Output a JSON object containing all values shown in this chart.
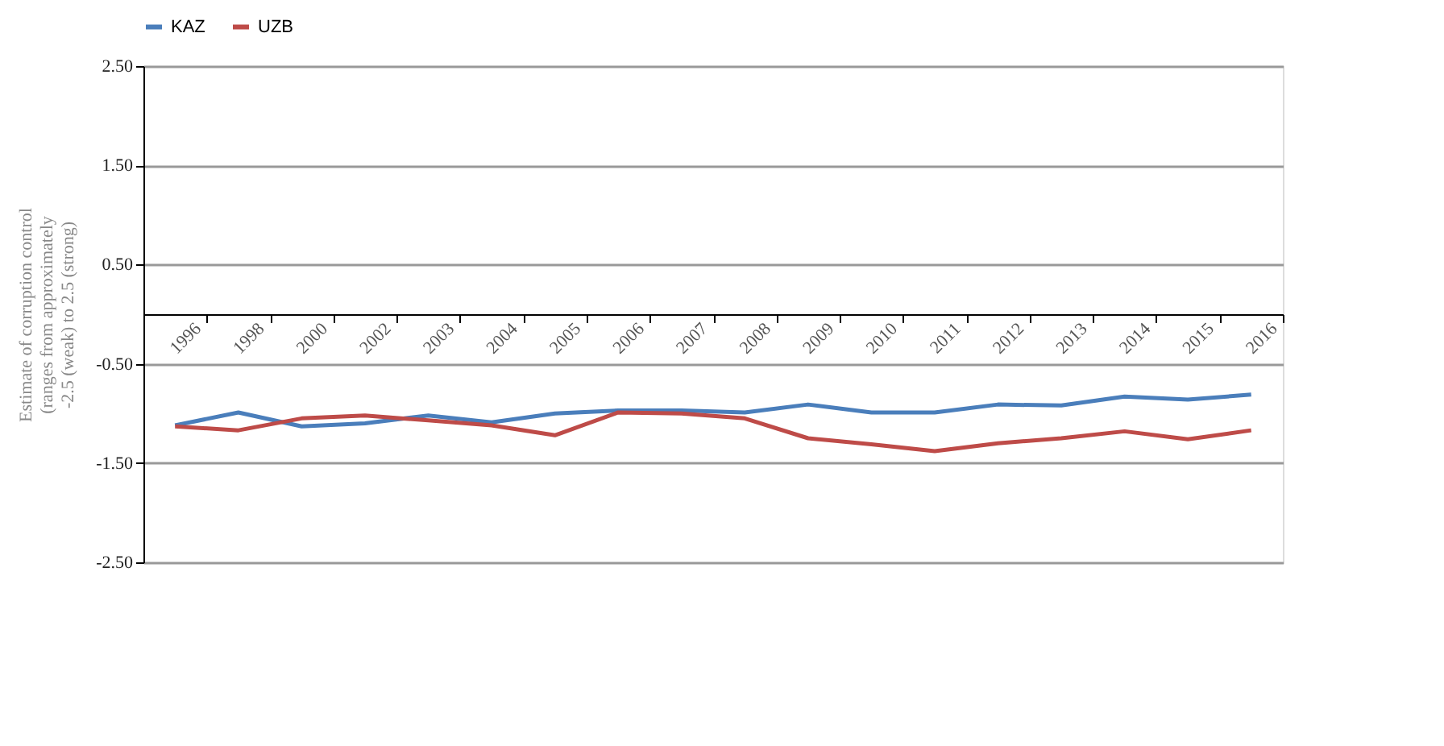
{
  "chart_data": {
    "type": "line",
    "ylabel": "Estimate of corruption control (ranges from approximately -2.5 (weak) to 2.5 (strong)",
    "categories": [
      "1996",
      "1998",
      "2000",
      "2002",
      "2003",
      "2004",
      "2005",
      "2006",
      "2007",
      "2008",
      "2009",
      "2010",
      "2011",
      "2012",
      "2013",
      "2014",
      "2015",
      "2016"
    ],
    "series": [
      {
        "name": "KAZ",
        "color": "#4a7ebb",
        "values": [
          -1.12,
          -0.99,
          -1.13,
          -1.1,
          -1.02,
          -1.09,
          -1.0,
          -0.97,
          -0.97,
          -0.99,
          -0.91,
          -0.99,
          -0.99,
          -0.91,
          -0.92,
          -0.83,
          -0.86,
          -0.81
        ]
      },
      {
        "name": "UZB",
        "color": "#be4b48",
        "values": [
          -1.13,
          -1.17,
          -1.05,
          -1.02,
          -1.07,
          -1.12,
          -1.22,
          -0.99,
          -1.0,
          -1.05,
          -1.25,
          -1.31,
          -1.38,
          -1.3,
          -1.25,
          -1.18,
          -1.26,
          -1.17
        ]
      }
    ],
    "ylim": [
      -2.5,
      2.5
    ],
    "yticks": [
      {
        "value": 2.5,
        "label": "2.50"
      },
      {
        "value": 1.5,
        "label": "1.50"
      },
      {
        "value": 0.5,
        "label": "0.50"
      },
      {
        "value": -0.5,
        "label": "-0.50"
      },
      {
        "value": -1.5,
        "label": "-1.50"
      },
      {
        "value": -2.5,
        "label": "-2.50"
      }
    ],
    "grid": "y",
    "legend": "top",
    "line_style": "solid",
    "marker": "none"
  }
}
